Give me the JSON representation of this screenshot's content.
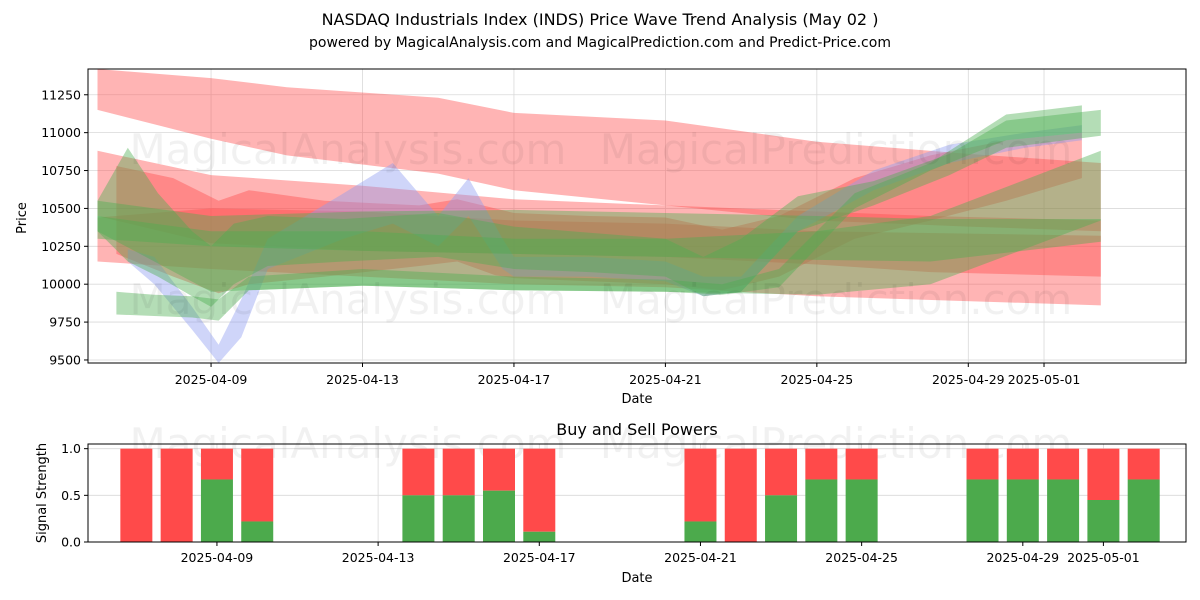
{
  "chart_data": [
    {
      "type": "area",
      "title": "NASDAQ Industrials Index (INDS) Price Wave Trend Analysis (May 02 )",
      "subtitle": "powered by MagicalAnalysis.com and MagicalPrediction.com and Predict-Price.com",
      "xlabel": "Date",
      "ylabel": "Price",
      "xlim": [
        "2025-04-05.75",
        "2025-05-04.75"
      ],
      "ylim": [
        9480,
        11420
      ],
      "x_ticks": [
        "2025-04-09",
        "2025-04-13",
        "2025-04-17",
        "2025-04-21",
        "2025-04-25",
        "2025-04-29",
        "2025-05-01"
      ],
      "y_ticks": [
        9500,
        9750,
        10000,
        10250,
        10500,
        10750,
        11000,
        11250
      ],
      "grid": true,
      "watermarks": [
        "MagicalAnalysis.com",
        "MagicalPrediction.com"
      ],
      "bands": [
        {
          "color": "#ff4d4d",
          "x": [
            6,
            9,
            11,
            15,
            17,
            21,
            25,
            29,
            32.5
          ],
          "low": [
            11150,
            10960,
            10850,
            10730,
            10620,
            10520,
            10420,
            10380,
            10350
          ],
          "high": [
            11420,
            11360,
            11300,
            11230,
            11130,
            11080,
            10940,
            10860,
            10800
          ]
        },
        {
          "color": "#ff4d4d",
          "x": [
            6,
            9,
            13,
            17,
            21,
            25,
            28,
            32.5
          ],
          "low": [
            10450,
            10270,
            10220,
            10200,
            10180,
            10130,
            10080,
            10050
          ],
          "high": [
            10880,
            10720,
            10650,
            10560,
            10520,
            10480,
            10450,
            10420
          ]
        },
        {
          "color": "#ff4d4d",
          "x": [
            6,
            9,
            13,
            17,
            21,
            25,
            32.5
          ],
          "low": [
            10150,
            10100,
            10050,
            10000,
            9980,
            9920,
            9860
          ],
          "high": [
            10440,
            10500,
            10480,
            10420,
            10400,
            10350,
            10320
          ]
        },
        {
          "color": "#ff4d4d",
          "x": [
            6.5,
            8,
            9.2,
            10,
            12,
            14.5,
            15.5,
            16.5,
            17,
            19,
            21,
            22.5,
            24,
            26,
            28,
            30,
            32
          ],
          "low": [
            10200,
            10050,
            9940,
            10000,
            10050,
            10120,
            10150,
            10060,
            10040,
            10020,
            10000,
            9960,
            10050,
            10300,
            10420,
            10550,
            10700
          ],
          "high": [
            10780,
            10700,
            10550,
            10620,
            10550,
            10520,
            10560,
            10500,
            10470,
            10450,
            10440,
            10360,
            10450,
            10700,
            10850,
            10950,
            11000
          ]
        },
        {
          "color": "#8c9bf0",
          "x": [
            6.8,
            7.5,
            8.5,
            9.2,
            9.8,
            10.5,
            12.5,
            13.8,
            15,
            15.8,
            16.7,
            17,
            19,
            21,
            22,
            23,
            24.5,
            26.5,
            28.5,
            30.5,
            32
          ],
          "low": [
            10150,
            10000,
            9700,
            9480,
            9650,
            10100,
            10300,
            10400,
            10250,
            10450,
            10100,
            10050,
            10050,
            10020,
            9920,
            9950,
            10350,
            10620,
            10800,
            10900,
            10950
          ],
          "high": [
            10230,
            10180,
            9850,
            9600,
            9900,
            10300,
            10600,
            10800,
            10450,
            10700,
            10300,
            10180,
            10180,
            10150,
            10050,
            10050,
            10450,
            10750,
            10920,
            11000,
            11050
          ]
        },
        {
          "color": "#4caf50",
          "x": [
            6,
            6.8,
            7.6,
            8.5,
            9,
            9.6,
            10.5,
            12.5,
            15,
            17,
            19,
            21,
            22,
            23,
            24.5,
            26.5,
            28.5,
            30,
            32.5
          ],
          "low": [
            10350,
            10150,
            10050,
            9920,
            9850,
            10000,
            10120,
            10150,
            10180,
            10100,
            10080,
            10050,
            9920,
            9950,
            10350,
            10520,
            10720,
            10900,
            10980
          ],
          "high": [
            10550,
            10900,
            10600,
            10350,
            10250,
            10400,
            10450,
            10430,
            10470,
            10380,
            10340,
            10300,
            10180,
            10300,
            10580,
            10680,
            10860,
            11080,
            11150
          ]
        },
        {
          "color": "#4caf50",
          "x": [
            6,
            9,
            13,
            17,
            21,
            25,
            28,
            32.5
          ],
          "low": [
            10350,
            9950,
            9990,
            9960,
            9950,
            9930,
            10000,
            10420
          ],
          "high": [
            10450,
            10350,
            10350,
            10300,
            10300,
            10350,
            10450,
            10880
          ]
        },
        {
          "color": "#4caf50",
          "x": [
            6,
            9,
            13,
            17,
            21,
            25,
            28,
            32.5
          ],
          "low": [
            10300,
            10250,
            10220,
            10200,
            10180,
            10160,
            10150,
            10280
          ],
          "high": [
            10550,
            10450,
            10480,
            10490,
            10470,
            10450,
            10430,
            10430
          ]
        },
        {
          "color": "#4caf50",
          "x": [
            6.5,
            7.5,
            8.5,
            9.2,
            10,
            13,
            17,
            21,
            22.5,
            24,
            26,
            28,
            30,
            32
          ],
          "low": [
            9800,
            9790,
            9780,
            9760,
            9960,
            9990,
            9960,
            9950,
            9930,
            9980,
            10500,
            10750,
            10950,
            11000
          ],
          "high": [
            9950,
            9930,
            9920,
            9900,
            10050,
            10100,
            10050,
            10030,
            10000,
            10100,
            10600,
            10800,
            11120,
            11180
          ]
        }
      ]
    },
    {
      "type": "bar",
      "title": "Buy and Sell Powers",
      "xlabel": "Date",
      "ylabel": "Signal Strength",
      "ylim": [
        0,
        1.05
      ],
      "y_ticks": [
        "0.0",
        "0.5",
        "1.0"
      ],
      "x_ticks": [
        "2025-04-09",
        "2025-04-13",
        "2025-04-17",
        "2025-04-21",
        "2025-04-25",
        "2025-04-29",
        "2025-05-01"
      ],
      "series": [
        {
          "name": "Buy",
          "color": "#4caa4c"
        },
        {
          "name": "Sell",
          "color": "#ff4a4a"
        }
      ],
      "dates": [
        "2025-04-07",
        "2025-04-08",
        "2025-04-09",
        "2025-04-10",
        "2025-04-14",
        "2025-04-15",
        "2025-04-16",
        "2025-04-17",
        "2025-04-21",
        "2025-04-22",
        "2025-04-23",
        "2025-04-24",
        "2025-04-25",
        "2025-04-28",
        "2025-04-29",
        "2025-04-30",
        "2025-05-01",
        "2025-05-02"
      ],
      "buy": [
        0,
        0,
        0.67,
        0.22,
        0.5,
        0.5,
        0.55,
        0.11,
        0.22,
        0,
        0.5,
        0.67,
        0.67,
        0.67,
        0.67,
        0.67,
        0.45,
        0.67
      ],
      "watermarks": [
        "MagicalAnalysis.com",
        "MagicalPrediction.com"
      ]
    }
  ]
}
